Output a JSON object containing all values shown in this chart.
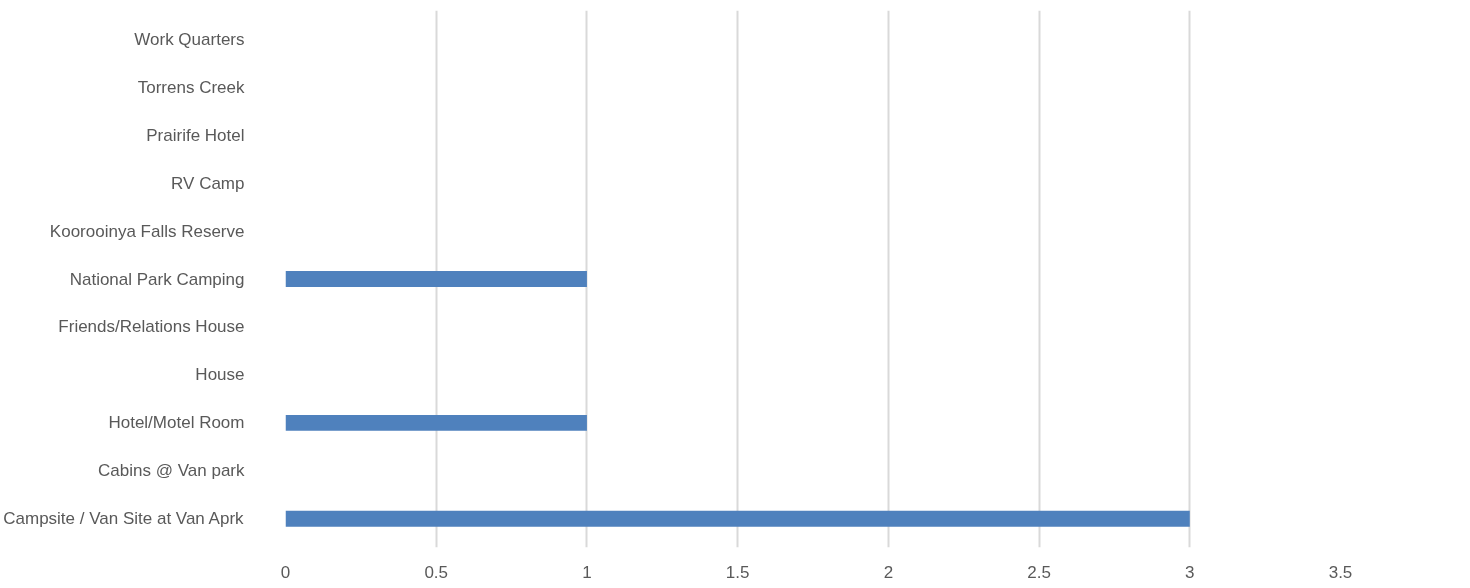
{
  "chart_data": {
    "type": "bar",
    "orientation": "horizontal",
    "categories": [
      "Work Quarters",
      "Torrens Creek",
      "Prairife Hotel",
      "RV Camp",
      "Koorooinya Falls Reserve",
      "National Park Camping",
      "Friends/Relations House",
      "House",
      "Hotel/Motel Room",
      "Cabins @ Van park",
      "Campsite / Van Site at Van Aprk"
    ],
    "values": [
      0,
      0,
      0,
      0,
      0,
      1,
      0,
      0,
      1,
      0,
      3
    ],
    "color": "#4f81bd",
    "xlim": [
      0,
      3.5
    ],
    "xticks": [
      0,
      0.5,
      1,
      1.5,
      2,
      2.5,
      3,
      3.5
    ],
    "grid": "x"
  }
}
